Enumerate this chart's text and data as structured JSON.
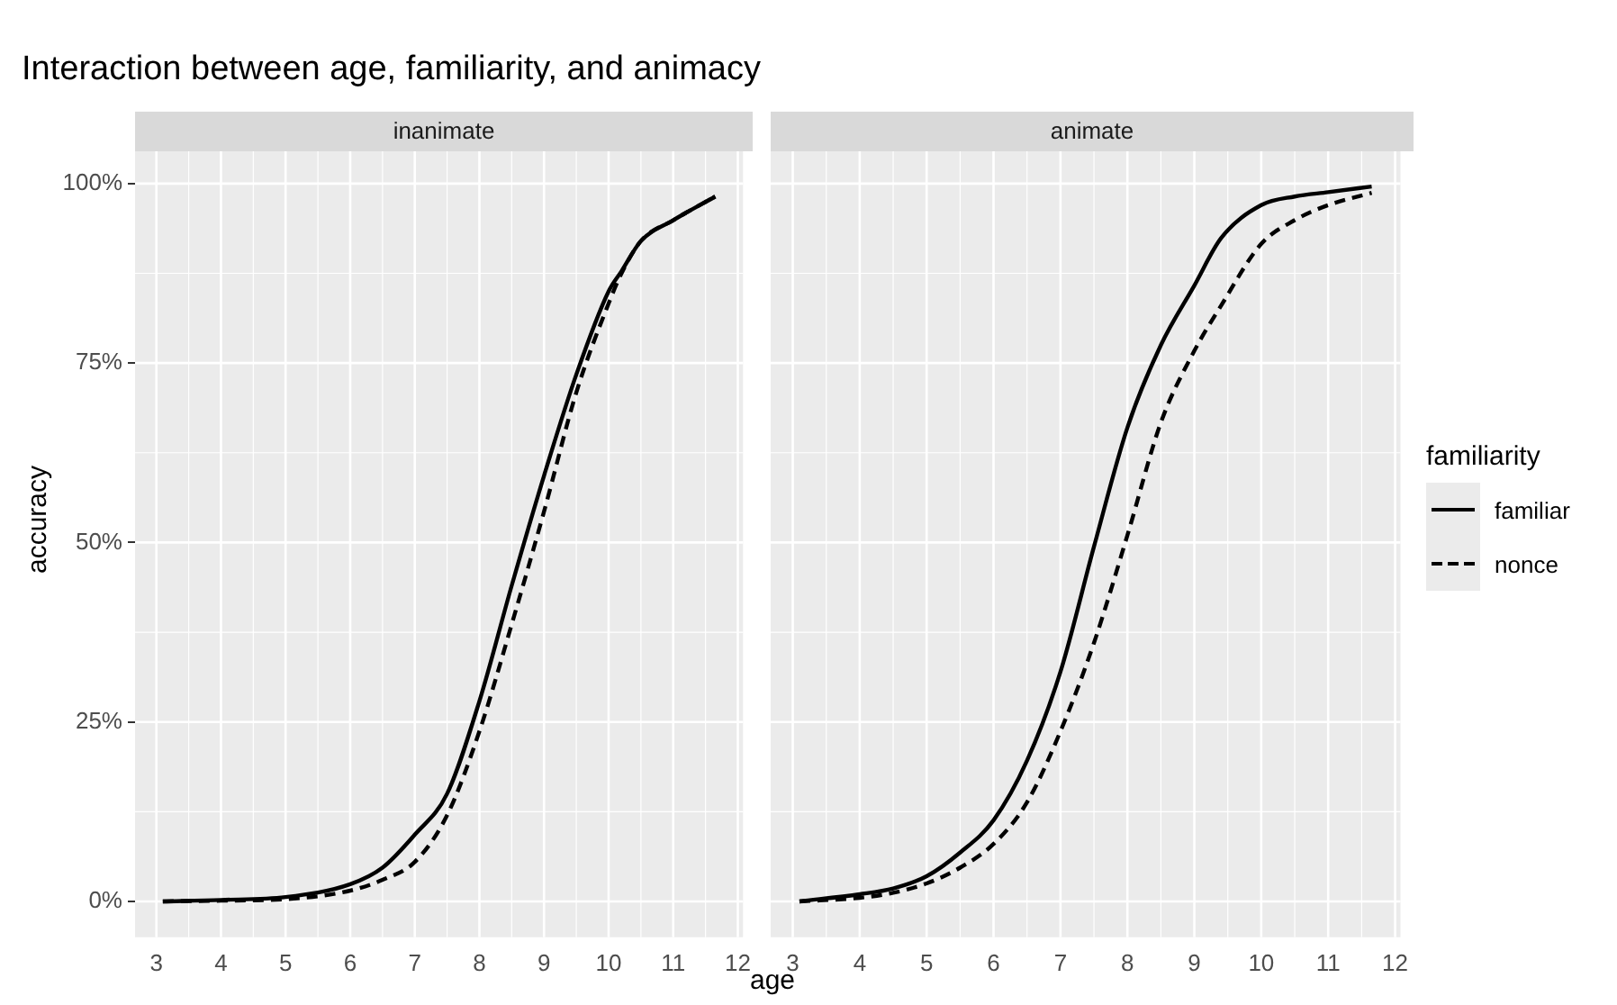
{
  "chart_data": [
    {
      "type": "line",
      "title": "Interaction between age,  familiarity, and animacy",
      "subtitle": "inanimate",
      "xlabel": "age",
      "ylabel": "accuracy",
      "x": [
        3.1,
        4,
        5,
        6,
        6.5,
        7,
        7.5,
        8,
        8.5,
        9,
        9.5,
        10,
        10.2,
        10.5,
        11,
        11.65
      ],
      "series": [
        {
          "name": "familiar",
          "color": "#000000",
          "line_style": "solid",
          "values": [
            0,
            0.2,
            0.6,
            2.4,
            4.7,
            9.3,
            15,
            27.9,
            44,
            59.3,
            73.4,
            85,
            87.8,
            92,
            94.9,
            98.2
          ]
        },
        {
          "name": "nonce",
          "color": "#000000",
          "line_style": "dashed",
          "values": [
            0,
            0.1,
            0.3,
            1.5,
            3,
            5.5,
            12,
            23.7,
            38.6,
            54.3,
            70.9,
            83.3,
            87.5,
            92,
            94.9,
            98.2
          ]
        }
      ],
      "xlim": [
        2.67,
        12.08
      ],
      "xticks": [
        3,
        4,
        5,
        6,
        7,
        8,
        9,
        10,
        11,
        12
      ],
      "ylim": [
        -5,
        104.5
      ],
      "yticks": [
        {
          "value": 0,
          "label": "0%"
        },
        {
          "value": 25,
          "label": "25%"
        },
        {
          "value": 50,
          "label": "50%"
        },
        {
          "value": 75,
          "label": "75%"
        },
        {
          "value": 100,
          "label": "100%"
        }
      ],
      "grid": true,
      "marker": "none",
      "legend": "right",
      "legend_title": "familiarity"
    },
    {
      "type": "line",
      "subtitle": "animate",
      "tick_labels": "x",
      "x": [
        3.1,
        4,
        4.5,
        5,
        5.5,
        6,
        6.5,
        7,
        7.5,
        8,
        8.5,
        9,
        9.4,
        10,
        10.5,
        11,
        11.65
      ],
      "series": [
        {
          "color": "#000000",
          "line_style": "solid",
          "values": [
            0,
            1,
            1.8,
            3.5,
            6.8,
            11.3,
            19.6,
            32,
            49.4,
            66,
            77.5,
            85.8,
            92.4,
            97,
            98.2,
            98.8,
            99.6
          ]
        },
        {
          "color": "#000000",
          "line_style": "dashed",
          "values": [
            0,
            0.5,
            1.2,
            2.5,
            4.7,
            8,
            13.8,
            23.7,
            36,
            51,
            66.7,
            76.7,
            83,
            91.6,
            94.9,
            97,
            98.7
          ]
        }
      ],
      "xlim": [
        2.67,
        12.08
      ],
      "xticks": [
        3,
        4,
        5,
        6,
        7,
        8,
        9,
        10,
        11,
        12
      ],
      "ylim": [
        -5,
        104.5
      ],
      "yticks": [
        0,
        25,
        50,
        75,
        100
      ],
      "grid": true,
      "marker": "none"
    }
  ]
}
